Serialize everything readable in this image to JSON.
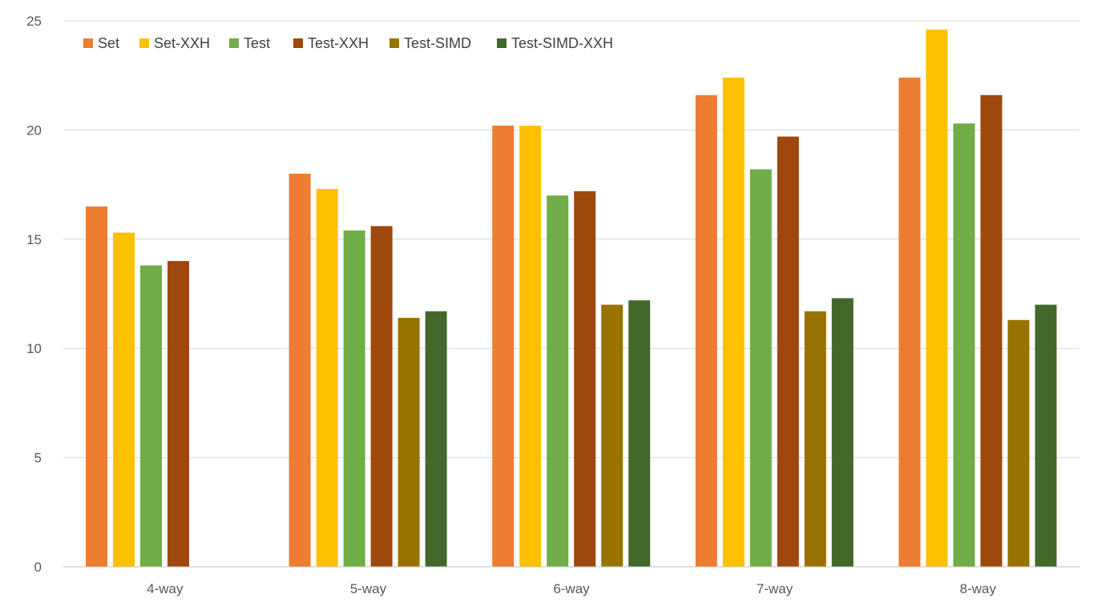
{
  "chart_data": {
    "type": "bar",
    "title": "",
    "xlabel": "",
    "ylabel": "",
    "categories": [
      "4-way",
      "5-way",
      "6-way",
      "7-way",
      "8-way"
    ],
    "ylim": [
      0,
      25
    ],
    "yticks": [
      0,
      5,
      10,
      15,
      20,
      25
    ],
    "grid": true,
    "legend_position": "top-left",
    "series": [
      {
        "name": "Set",
        "color": "#ED7D31",
        "values": [
          16.5,
          18.0,
          20.2,
          21.6,
          22.4
        ]
      },
      {
        "name": "Set-XXH",
        "color": "#FFC000",
        "values": [
          15.3,
          17.3,
          20.2,
          22.4,
          24.6
        ]
      },
      {
        "name": "Test",
        "color": "#70AD47",
        "values": [
          13.8,
          15.4,
          17.0,
          18.2,
          20.3
        ]
      },
      {
        "name": "Test-XXH",
        "color": "#9E480E",
        "values": [
          14.0,
          15.6,
          17.2,
          19.7,
          21.6
        ]
      },
      {
        "name": "Test-SIMD",
        "color": "#997300",
        "values": [
          null,
          11.4,
          12.0,
          11.7,
          11.3
        ]
      },
      {
        "name": "Test-SIMD-XXH",
        "color": "#43682B",
        "values": [
          null,
          11.7,
          12.2,
          12.3,
          12.0
        ]
      }
    ]
  }
}
